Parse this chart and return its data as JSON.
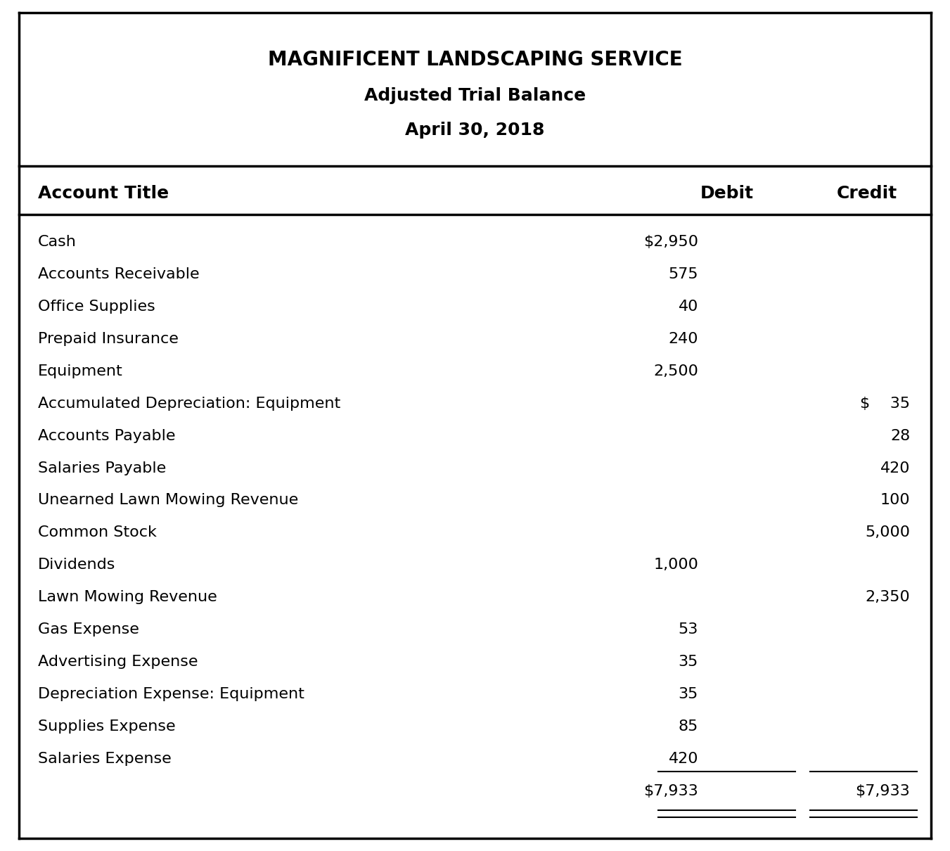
{
  "title_line1": "MAGNIFICENT LANDSCAPING SERVICE",
  "title_line2": "Adjusted Trial Balance",
  "title_line3": "April 30, 2018",
  "col_headers": [
    "Account Title",
    "Debit",
    "Credit"
  ],
  "rows": [
    {
      "account": "Cash",
      "debit": "$2,950",
      "credit": ""
    },
    {
      "account": "Accounts Receivable",
      "debit": "575",
      "credit": ""
    },
    {
      "account": "Office Supplies",
      "debit": "40",
      "credit": ""
    },
    {
      "account": "Prepaid Insurance",
      "debit": "240",
      "credit": ""
    },
    {
      "account": "Equipment",
      "debit": "2,500",
      "credit": ""
    },
    {
      "account": "Accumulated Depreciation: Equipment",
      "debit": "",
      "credit": "$    35"
    },
    {
      "account": "Accounts Payable",
      "debit": "",
      "credit": "28"
    },
    {
      "account": "Salaries Payable",
      "debit": "",
      "credit": "420"
    },
    {
      "account": "Unearned Lawn Mowing Revenue",
      "debit": "",
      "credit": "100"
    },
    {
      "account": "Common Stock",
      "debit": "",
      "credit": "5,000"
    },
    {
      "account": "Dividends",
      "debit": "1,000",
      "credit": ""
    },
    {
      "account": "Lawn Mowing Revenue",
      "debit": "",
      "credit": "2,350"
    },
    {
      "account": "Gas Expense",
      "debit": "53",
      "credit": ""
    },
    {
      "account": "Advertising Expense",
      "debit": "35",
      "credit": ""
    },
    {
      "account": "Depreciation Expense: Equipment",
      "debit": "35",
      "credit": ""
    },
    {
      "account": "Supplies Expense",
      "debit": "85",
      "credit": ""
    },
    {
      "account": "Salaries Expense",
      "debit": "420",
      "credit": ""
    }
  ],
  "total_debit": "$7,933",
  "total_credit": "$7,933",
  "bg_color": "#ffffff",
  "border_color": "#000000",
  "title_fontsize_1": 20,
  "title_fontsize_2": 18,
  "header_fontsize": 18,
  "row_fontsize": 16
}
